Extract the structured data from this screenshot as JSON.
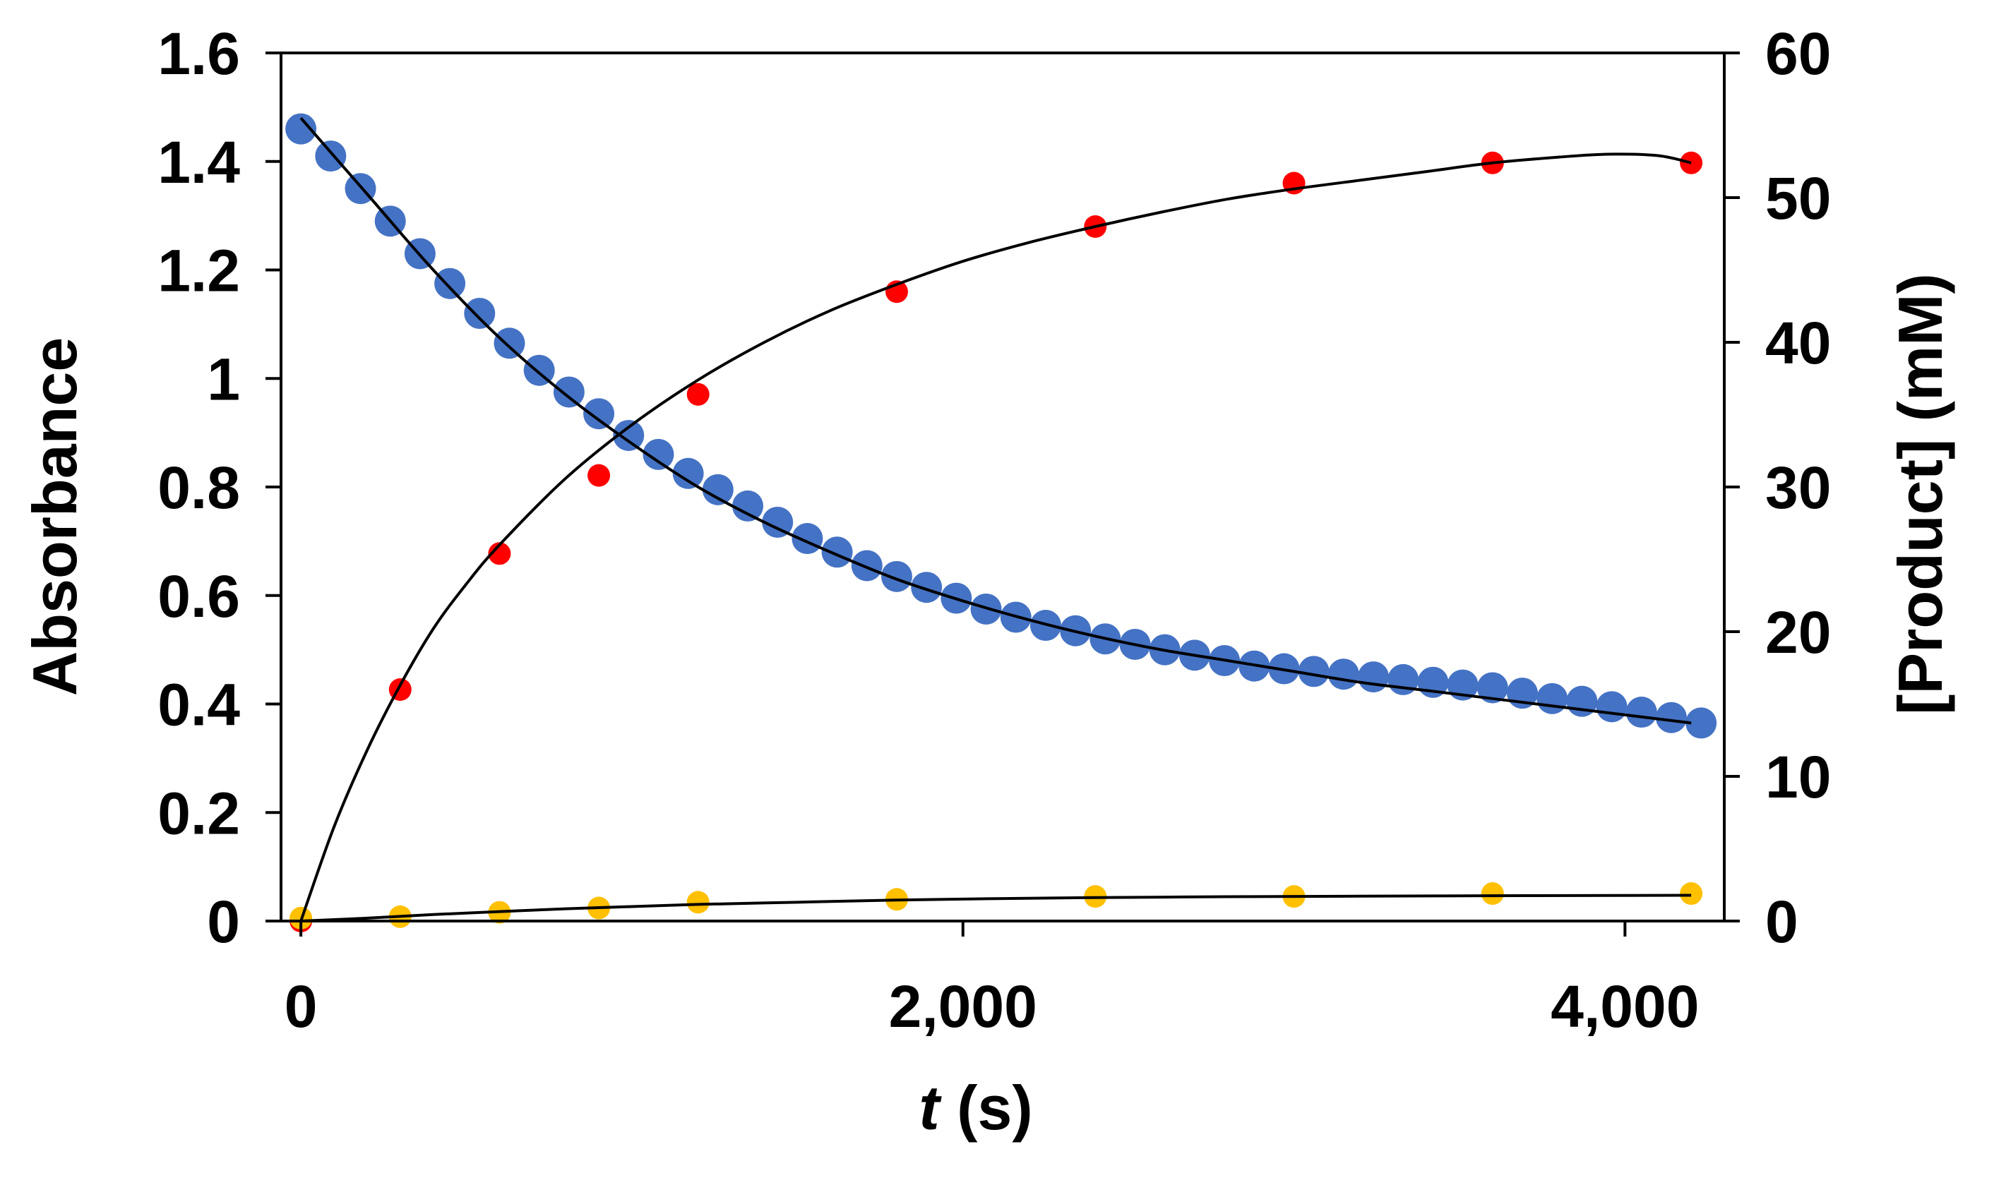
{
  "chart_data": {
    "type": "scatter",
    "title": "",
    "xlabel": {
      "italic": "t",
      "rest": " (s)"
    },
    "ylabel": "Absorbance",
    "y2label": "[Product] (mM)",
    "xlim": [
      -60,
      4300
    ],
    "ylim": [
      0,
      1.6
    ],
    "y2lim": [
      0,
      60
    ],
    "x_ticks": [
      0,
      2000,
      4000
    ],
    "x_tick_labels": [
      "0",
      "2,000",
      "4,000"
    ],
    "y_ticks": [
      0,
      0.2,
      0.4,
      0.6,
      0.8,
      1,
      1.2,
      1.4,
      1.6
    ],
    "y_tick_labels": [
      "0",
      "0.2",
      "0.4",
      "0.6",
      "0.8",
      "1",
      "1.2",
      "1.4",
      "1.6"
    ],
    "y2_ticks": [
      0,
      10,
      20,
      30,
      40,
      50,
      60
    ],
    "y2_tick_labels": [
      "0",
      "10",
      "20",
      "30",
      "40",
      "50",
      "60"
    ],
    "grid": false,
    "legend": "none",
    "series": [
      {
        "name": "Absorbance",
        "axis": "left",
        "color": "#4472C4",
        "marker": "large-circle",
        "x": [
          0,
          90,
          180,
          270,
          360,
          450,
          540,
          630,
          720,
          810,
          900,
          990,
          1080,
          1170,
          1260,
          1350,
          1440,
          1530,
          1620,
          1710,
          1800,
          1890,
          1980,
          2070,
          2160,
          2250,
          2340,
          2430,
          2520,
          2610,
          2700,
          2790,
          2880,
          2970,
          3060,
          3150,
          3240,
          3330,
          3420,
          3510,
          3600,
          3690,
          3780,
          3870,
          3960,
          4050,
          4140,
          4230
        ],
        "values": [
          1.46,
          1.41,
          1.35,
          1.29,
          1.23,
          1.175,
          1.12,
          1.065,
          1.015,
          0.975,
          0.935,
          0.895,
          0.86,
          0.825,
          0.795,
          0.765,
          0.735,
          0.705,
          0.68,
          0.655,
          0.635,
          0.615,
          0.595,
          0.575,
          0.56,
          0.545,
          0.535,
          0.52,
          0.51,
          0.5,
          0.49,
          0.48,
          0.47,
          0.465,
          0.46,
          0.455,
          0.45,
          0.445,
          0.44,
          0.435,
          0.43,
          0.42,
          0.41,
          0.405,
          0.395,
          0.385,
          0.375,
          0.365
        ]
      },
      {
        "name": "Product (red)",
        "axis": "right",
        "color": "#FF0000",
        "marker": "circle",
        "x": [
          0,
          300,
          600,
          900,
          1200,
          1800,
          2400,
          3000,
          3600,
          4200
        ],
        "values": [
          0,
          16,
          25.4,
          30.8,
          36.4,
          43.5,
          48,
          51,
          52.4,
          52.4
        ]
      },
      {
        "name": "Product (yellow)",
        "axis": "right",
        "color": "#FFC000",
        "marker": "circle",
        "x": [
          0,
          300,
          600,
          900,
          1200,
          1800,
          2400,
          3000,
          3600,
          4200
        ],
        "values": [
          0.2,
          0.3,
          0.6,
          0.9,
          1.3,
          1.5,
          1.7,
          1.7,
          1.9,
          1.9
        ]
      }
    ],
    "fit_curves": [
      {
        "name": "Absorbance fit",
        "axis": "left",
        "color": "#000000",
        "x": [
          0,
          200,
          400,
          600,
          800,
          1000,
          1200,
          1400,
          1600,
          1800,
          2000,
          2200,
          2400,
          2600,
          2800,
          3000,
          3200,
          3400,
          3600,
          3800,
          4000,
          4200
        ],
        "values": [
          1.48,
          1.34,
          1.2,
          1.075,
          0.97,
          0.88,
          0.8,
          0.735,
          0.68,
          0.63,
          0.59,
          0.555,
          0.525,
          0.5,
          0.48,
          0.46,
          0.44,
          0.425,
          0.41,
          0.395,
          0.38,
          0.365
        ]
      },
      {
        "name": "Product (red) fit",
        "axis": "right",
        "color": "#000000",
        "x": [
          0,
          100,
          200,
          300,
          400,
          500,
          600,
          800,
          1000,
          1200,
          1400,
          1600,
          1800,
          2000,
          2200,
          2400,
          2600,
          2800,
          3000,
          3200,
          3400,
          3600,
          3800,
          3950,
          4100,
          4200
        ],
        "values": [
          0,
          6.5,
          11.8,
          16.3,
          20.2,
          23.3,
          26,
          30.6,
          34.3,
          37.4,
          40,
          42.2,
          44,
          45.6,
          46.9,
          48,
          49,
          49.9,
          50.6,
          51.2,
          51.8,
          52.4,
          52.8,
          53,
          52.9,
          52.4
        ]
      },
      {
        "name": "Product (yellow) fit",
        "axis": "right",
        "color": "#000000",
        "x": [
          0,
          200,
          400,
          600,
          800,
          1000,
          1200,
          1500,
          1800,
          2100,
          2400,
          2800,
          3200,
          3600,
          4000,
          4200
        ],
        "values": [
          0,
          0.2,
          0.45,
          0.65,
          0.85,
          1,
          1.15,
          1.3,
          1.45,
          1.55,
          1.62,
          1.68,
          1.72,
          1.75,
          1.77,
          1.78
        ]
      }
    ]
  }
}
